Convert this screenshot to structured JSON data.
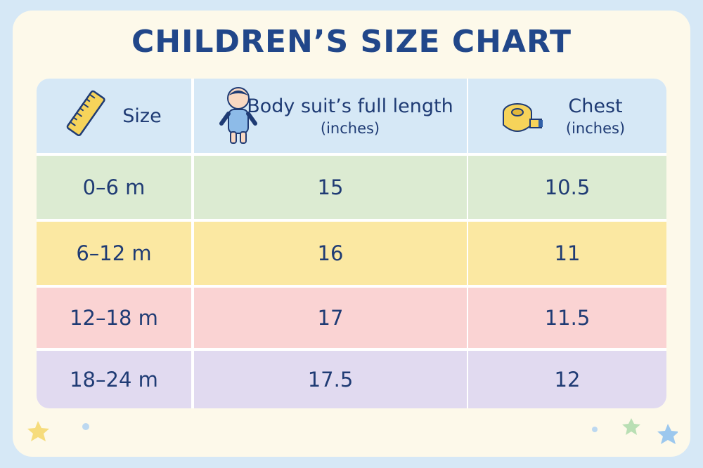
{
  "title": "CHILDREN’S SIZE CHART",
  "table": {
    "headers": [
      {
        "label": "Size"
      },
      {
        "label": "Body suit’s full length",
        "unit": "(inches)"
      },
      {
        "label": "Chest",
        "unit": "(inches)"
      }
    ],
    "rows": [
      [
        "0–6 m",
        15,
        10.5
      ],
      [
        "6–12 m",
        16,
        11
      ],
      [
        "12–18 m",
        17,
        11.5
      ],
      [
        "18–24 m",
        17.5,
        12
      ]
    ]
  }
}
